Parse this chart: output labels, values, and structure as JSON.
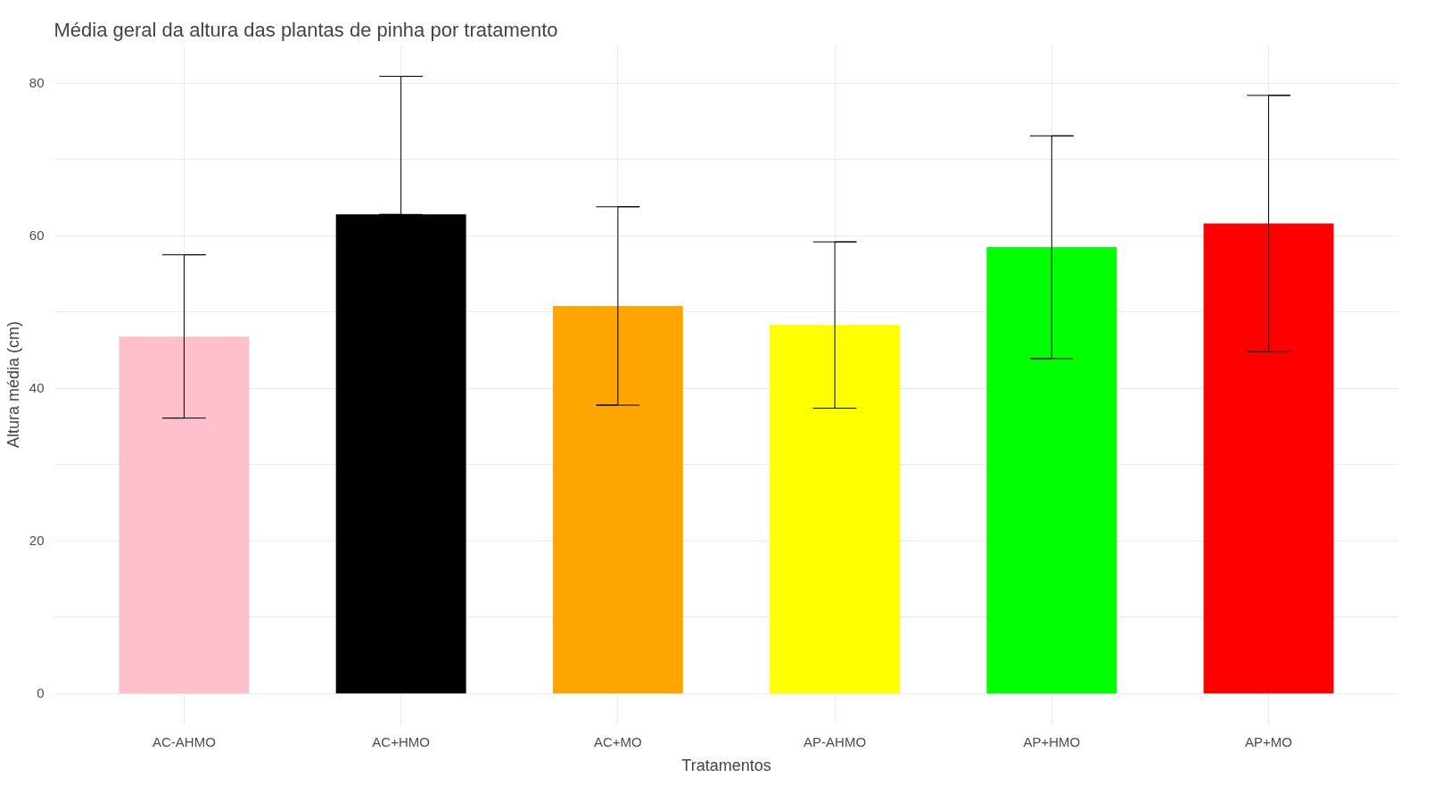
{
  "chart_data": {
    "type": "bar",
    "title": "Média geral da altura das plantas de pinha por tratamento",
    "xlabel": "Tratamentos",
    "ylabel": "Altura média (cm)",
    "categories": [
      "AC-AHMO",
      "AC+HMO",
      "AC+MO",
      "AP-AHMO",
      "AP+HMO",
      "AP+MO"
    ],
    "values": [
      46.8,
      62.8,
      50.8,
      48.3,
      58.5,
      61.6
    ],
    "colors": [
      "#ffc0cb",
      "#000000",
      "#ffa500",
      "#ffff00",
      "#00ff00",
      "#ff0000"
    ],
    "errors": [
      [
        36.1,
        57.5
      ],
      [
        62.8,
        80.9
      ],
      [
        37.8,
        63.8
      ],
      [
        37.4,
        59.2
      ],
      [
        43.9,
        73.1
      ],
      [
        44.8,
        78.4
      ]
    ],
    "ylim": [
      -4,
      85
    ],
    "yticks": [
      0,
      {
        "value": 10,
        "label": null
      },
      20,
      {
        "value": 30,
        "label": null
      },
      40,
      {
        "value": 50,
        "label": null
      },
      60,
      {
        "value": 70,
        "label": null
      },
      80
    ],
    "grid": true
  }
}
